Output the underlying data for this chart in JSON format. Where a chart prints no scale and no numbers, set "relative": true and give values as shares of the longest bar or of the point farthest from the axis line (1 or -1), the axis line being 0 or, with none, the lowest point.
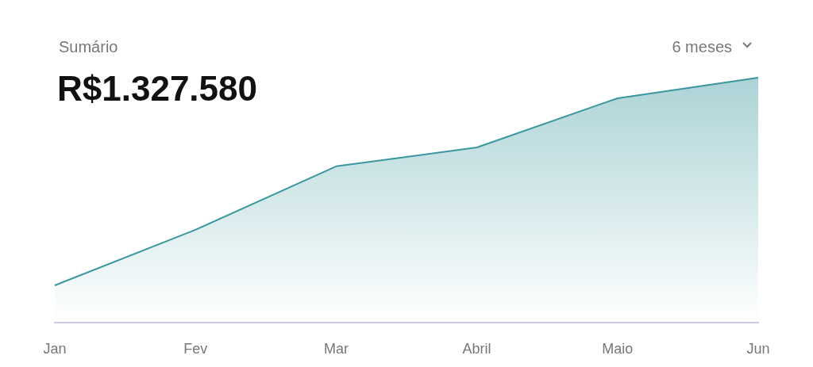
{
  "chart_data": {
    "type": "area",
    "title": "Sumário",
    "subtitle": "R$1.327.580",
    "annotations": [
      "6 meses"
    ],
    "categories": [
      "Jan",
      "Fev",
      "Mar",
      "Abril",
      "Maio",
      "Jun"
    ],
    "relative": true,
    "color": "#3b979e",
    "marker": "none",
    "values": [
      0.152,
      0.379,
      0.638,
      0.715,
      0.916,
      1
    ]
  }
}
